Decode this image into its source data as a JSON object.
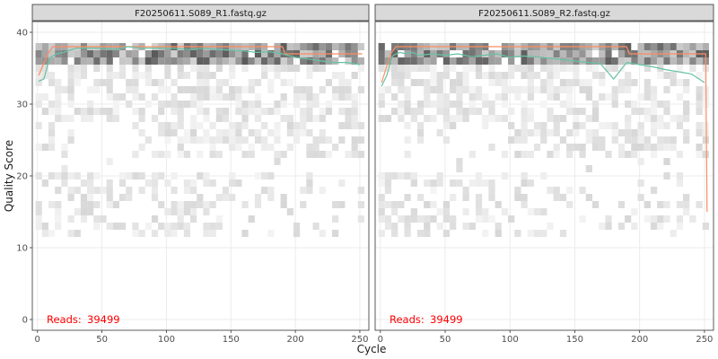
{
  "chart_data": {
    "type": "heatmap",
    "xlabel": "Cycle",
    "ylabel": "Quality Score",
    "xlim": [
      -4,
      257
    ],
    "ylim": [
      -1.5,
      41.5
    ],
    "x_ticks": [
      0,
      50,
      100,
      150,
      200,
      250
    ],
    "y_ticks": [
      0,
      10,
      20,
      30,
      40
    ],
    "grid": true,
    "legend": "none",
    "colors": {
      "mean_line": "#66c2a5",
      "quartile_line": "#fc8d62",
      "reads_text": "#ff0000",
      "strip_fill": "#d9d9d9",
      "panel_border": "#333333"
    },
    "panels": [
      {
        "title": "F20250611.S089_R1.fastq.gz",
        "reads_label": "Reads:",
        "reads_value": "39499",
        "mean_quality": {
          "x": [
            1,
            5,
            8,
            10,
            15,
            20,
            25,
            30,
            40,
            50,
            60,
            70,
            80,
            90,
            100,
            110,
            120,
            130,
            140,
            150,
            160,
            170,
            180,
            190,
            200,
            210,
            220,
            230,
            240,
            250
          ],
          "y": [
            33.2,
            33.5,
            35.5,
            36.5,
            37.0,
            37.2,
            37.5,
            37.8,
            37.8,
            37.8,
            37.6,
            38.0,
            37.8,
            37.8,
            37.8,
            37.7,
            37.6,
            37.8,
            37.6,
            37.5,
            37.4,
            37.2,
            37.3,
            37.0,
            36.5,
            36.3,
            36.0,
            35.8,
            35.8,
            35.5
          ]
        },
        "median_quality": {
          "x": [
            1,
            8,
            12,
            190,
            192,
            252
          ],
          "y": [
            34,
            37,
            38,
            38,
            37,
            37
          ]
        }
      },
      {
        "title": "F20250611.S089_R2.fastq.gz",
        "reads_label": "Reads:",
        "reads_value": "39499",
        "mean_quality": {
          "x": [
            1,
            5,
            8,
            10,
            15,
            20,
            25,
            30,
            40,
            50,
            60,
            70,
            80,
            90,
            100,
            110,
            120,
            130,
            140,
            150,
            160,
            170,
            180,
            190,
            200,
            210,
            220,
            230,
            240,
            250
          ],
          "y": [
            32.5,
            34.0,
            36.0,
            36.8,
            37.2,
            37.0,
            37.2,
            36.8,
            37.0,
            36.8,
            37.0,
            36.6,
            36.8,
            37.0,
            36.5,
            36.7,
            36.6,
            36.4,
            36.2,
            36.0,
            35.8,
            35.6,
            33.5,
            35.8,
            35.5,
            35.2,
            34.8,
            34.5,
            34.2,
            33.0
          ]
        },
        "median_quality": {
          "x": [
            1,
            8,
            12,
            190,
            192,
            251,
            252
          ],
          "y": [
            33,
            37,
            38,
            38,
            37,
            37,
            15
          ]
        }
      }
    ]
  }
}
